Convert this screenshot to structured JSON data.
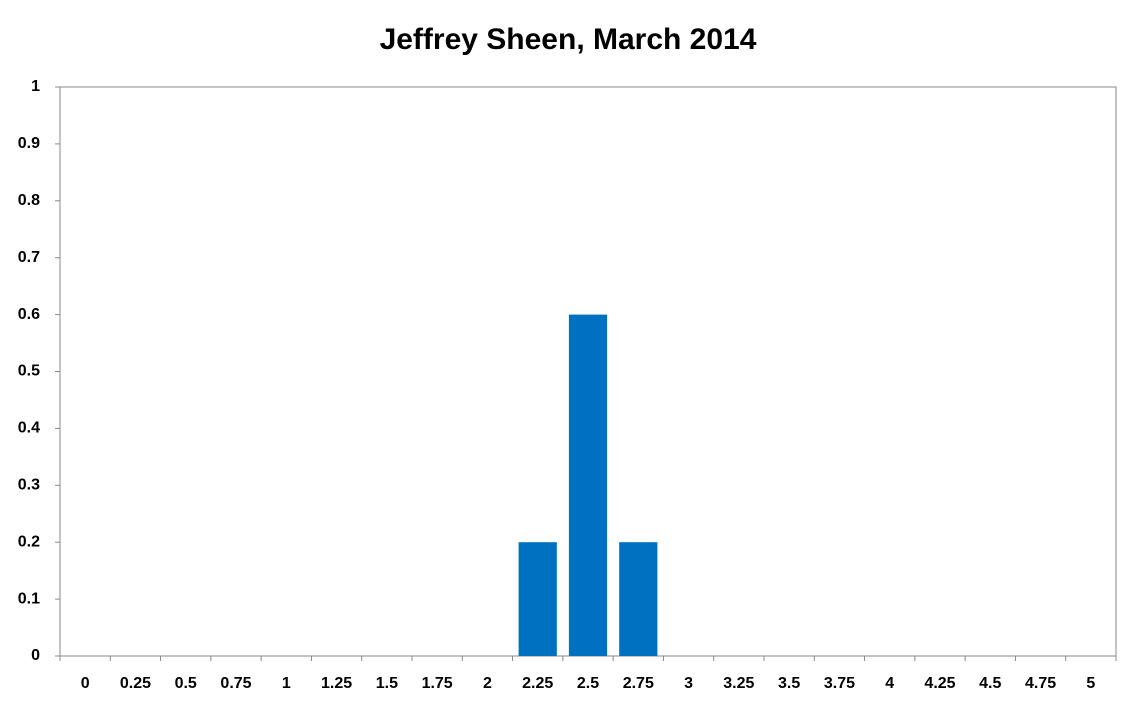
{
  "chart_data": {
    "type": "bar",
    "title": "Jeffrey Sheen, March 2014",
    "categories": [
      "0",
      "0.25",
      "0.5",
      "0.75",
      "1",
      "1.25",
      "1.5",
      "1.75",
      "2",
      "2.25",
      "2.5",
      "2.75",
      "3",
      "3.25",
      "3.5",
      "3.75",
      "4",
      "4.25",
      "4.5",
      "4.75",
      "5"
    ],
    "values": [
      0,
      0,
      0,
      0,
      0,
      0,
      0,
      0,
      0,
      0.2,
      0.6,
      0.2,
      0,
      0,
      0,
      0,
      0,
      0,
      0,
      0,
      0
    ],
    "color": "#0070c0",
    "ylim": [
      0,
      1
    ],
    "yticks": [
      0,
      0.1,
      0.2,
      0.3,
      0.4,
      0.5,
      0.6,
      0.7,
      0.8,
      0.9,
      1
    ],
    "grid": false
  }
}
